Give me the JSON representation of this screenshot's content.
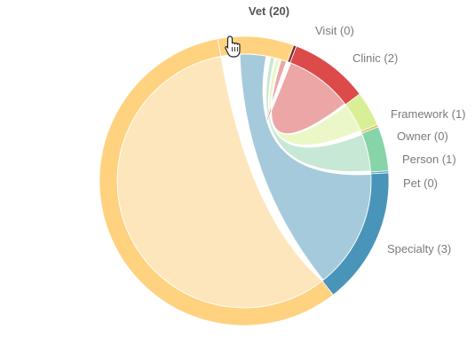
{
  "chart_data": {
    "type": "chord",
    "groups": [
      {
        "name": "Vet",
        "count": 20,
        "label": "Vet (20)",
        "color": "#ffd27f",
        "highlighted": true
      },
      {
        "name": "Visit",
        "count": 0,
        "label": "Visit (0)",
        "color": "#7b2e2e"
      },
      {
        "name": "Clinic",
        "count": 2,
        "label": "Clinic (2)",
        "color": "#dd4a4a"
      },
      {
        "name": "Framework",
        "count": 1,
        "label": "Framework (1)",
        "color": "#d8ef95"
      },
      {
        "name": "Owner",
        "count": 0,
        "label": "Owner (0)",
        "color": "#e1c065"
      },
      {
        "name": "Person",
        "count": 1,
        "label": "Person (1)",
        "color": "#86d4a8"
      },
      {
        "name": "Pet",
        "count": 0,
        "label": "Pet (0)",
        "color": "#5aa3c8"
      },
      {
        "name": "Specialty",
        "count": 3,
        "label": "Specialty (3)",
        "color": "#4895b9"
      }
    ],
    "links": [
      {
        "source": "Vet",
        "target": "Vet",
        "color": "#fee6bc"
      },
      {
        "source": "Vet",
        "target": "Specialty",
        "color": "#a5cadb"
      },
      {
        "source": "Vet",
        "target": "Person",
        "color": "#c6e8d4"
      },
      {
        "source": "Vet",
        "target": "Framework",
        "color": "#ebf7c6"
      },
      {
        "source": "Vet",
        "target": "Clinic",
        "color": "#eca6a6"
      }
    ]
  },
  "cursor": {
    "icon": "hand-pointer-icon"
  }
}
